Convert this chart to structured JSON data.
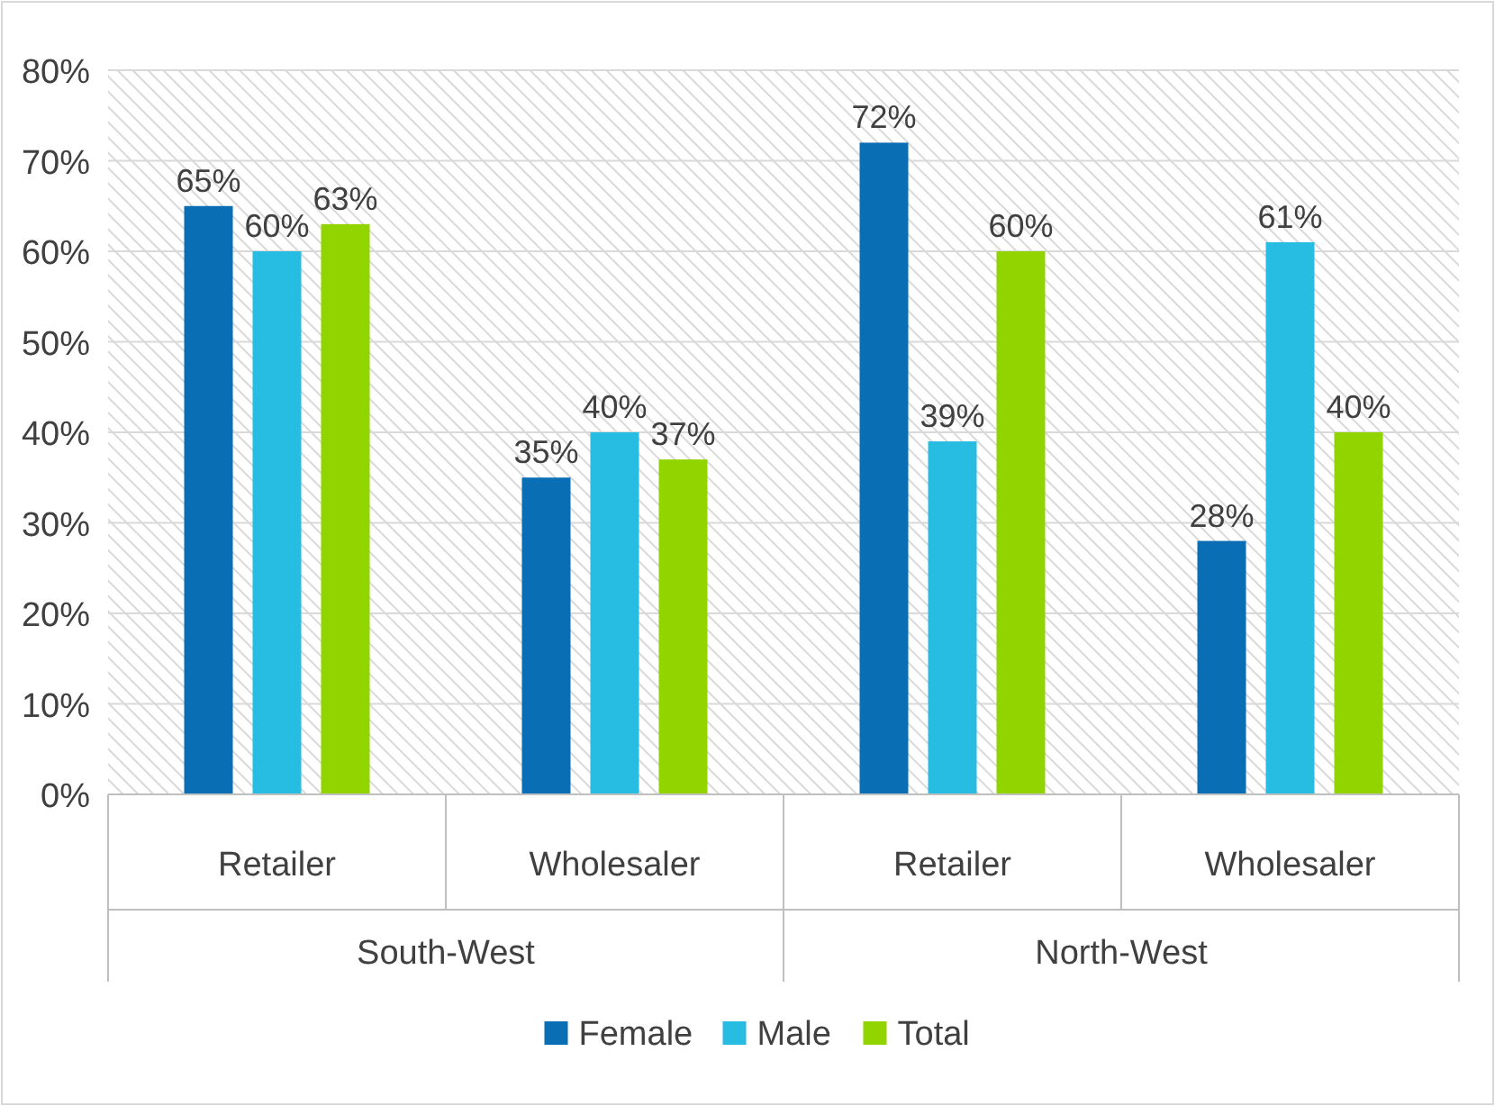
{
  "chart_data": {
    "type": "bar",
    "categories": [
      "Retailer",
      "Wholesaler",
      "Retailer",
      "Wholesaler"
    ],
    "series": [
      {
        "name": "Female",
        "color": "#0a6eb4",
        "values": [
          65,
          35,
          72,
          28
        ],
        "value_labels": [
          "65%",
          "35%",
          "72%",
          "28%"
        ]
      },
      {
        "name": "Male",
        "color": "#27bce2",
        "values": [
          60,
          40,
          39,
          61
        ],
        "value_labels": [
          "60%",
          "40%",
          "39%",
          "61%"
        ]
      },
      {
        "name": "Total",
        "color": "#92d400",
        "values": [
          63,
          37,
          60,
          40
        ],
        "value_labels": [
          "63%",
          "37%",
          "60%",
          "40%"
        ]
      }
    ],
    "annotations": [
      "South-West",
      "North-West"
    ],
    "ylim": [
      0,
      80
    ],
    "yticks": [
      {
        "value": 0,
        "label": "0%"
      },
      {
        "value": 10,
        "label": "10%"
      },
      {
        "value": 20,
        "label": "20%"
      },
      {
        "value": 30,
        "label": "30%"
      },
      {
        "value": 40,
        "label": "40%"
      },
      {
        "value": 50,
        "label": "50%"
      },
      {
        "value": 60,
        "label": "60%"
      },
      {
        "value": 70,
        "label": "70%"
      },
      {
        "value": 80,
        "label": "80%"
      }
    ],
    "grid": "y",
    "legend": "bottom"
  }
}
